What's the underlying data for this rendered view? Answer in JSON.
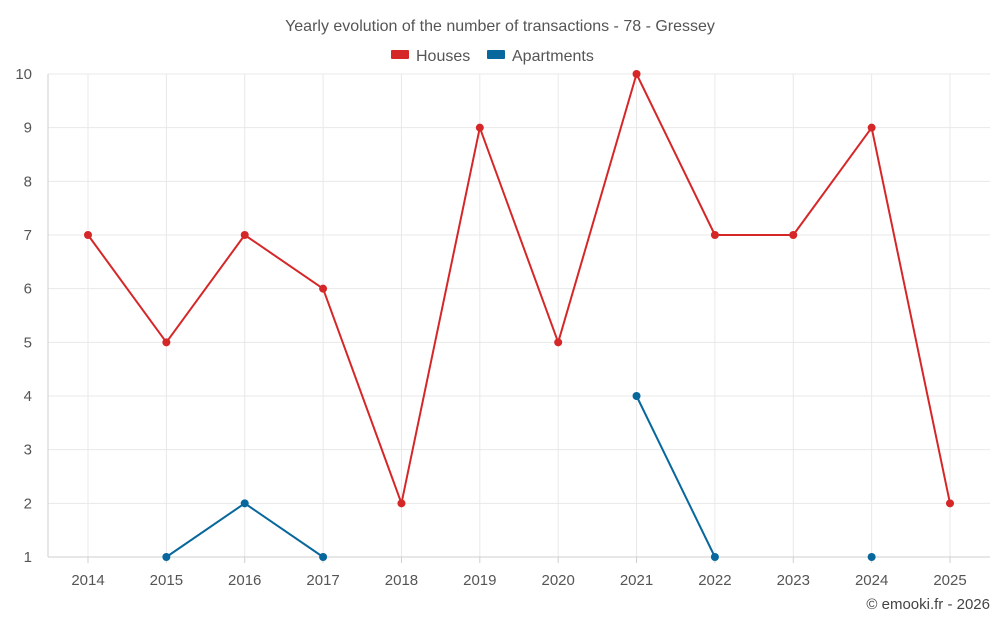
{
  "chart_data": {
    "type": "line",
    "title": "Yearly evolution of the number of transactions - 78 - Gressey",
    "categories": [
      "2014",
      "2015",
      "2016",
      "2017",
      "2018",
      "2019",
      "2020",
      "2021",
      "2022",
      "2023",
      "2024",
      "2025"
    ],
    "series": [
      {
        "name": "Houses",
        "color": "#d62728",
        "values": [
          7,
          5,
          7,
          6,
          2,
          9,
          5,
          10,
          7,
          7,
          9,
          2
        ]
      },
      {
        "name": "Apartments",
        "color": "#08679c",
        "values": [
          null,
          1,
          2,
          1,
          null,
          null,
          null,
          4,
          1,
          null,
          1,
          null
        ]
      }
    ],
    "y_ticks": [
      "1",
      "2",
      "3",
      "4",
      "5",
      "6",
      "7",
      "8",
      "9",
      "10"
    ],
    "ylim": [
      1,
      10
    ],
    "grid": true,
    "legend": "top-center",
    "xlabel": "",
    "ylabel": ""
  },
  "credit": "© emooki.fr - 2026"
}
